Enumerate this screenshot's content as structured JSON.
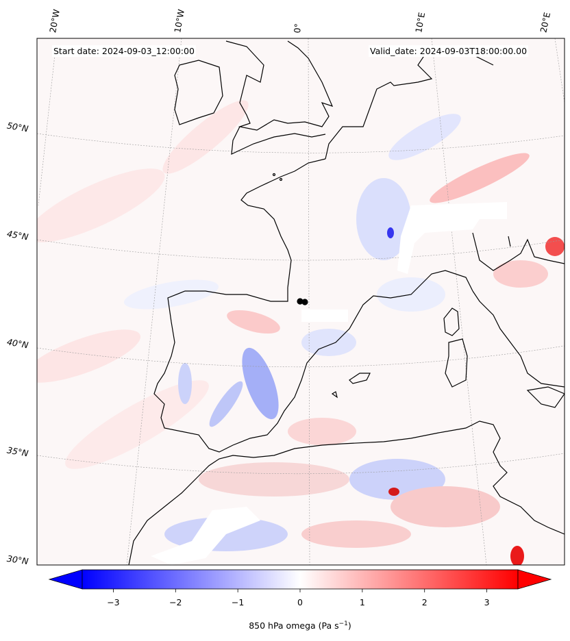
{
  "map": {
    "start_date": "Start date: 2024-09-03_12:00:00",
    "valid_date": "Valid_date: 2024-09-03T18:00:00.00",
    "lon_labels": [
      "20°W",
      "10°W",
      "0°",
      "10°E",
      "20°E"
    ],
    "lat_labels": [
      "50°N",
      "45°N",
      "40°N",
      "35°N",
      "30°N"
    ],
    "field": "850 hPa omega",
    "colorscale": {
      "min": -3.5,
      "max": 3.5,
      "neg_color": "#0000ff",
      "mid_color": "#ffffff",
      "pos_color": "#ff0000"
    }
  },
  "colorbar": {
    "ticks": [
      "−3",
      "−2",
      "−1",
      "0",
      "1",
      "2",
      "3"
    ],
    "tick_values": [
      -3,
      -2,
      -1,
      0,
      1,
      2,
      3
    ],
    "range": [
      -3.5,
      3.5
    ],
    "label_main": "850 hPa omega (Pa s",
    "label_exp": "−1",
    "label_end": ")"
  }
}
